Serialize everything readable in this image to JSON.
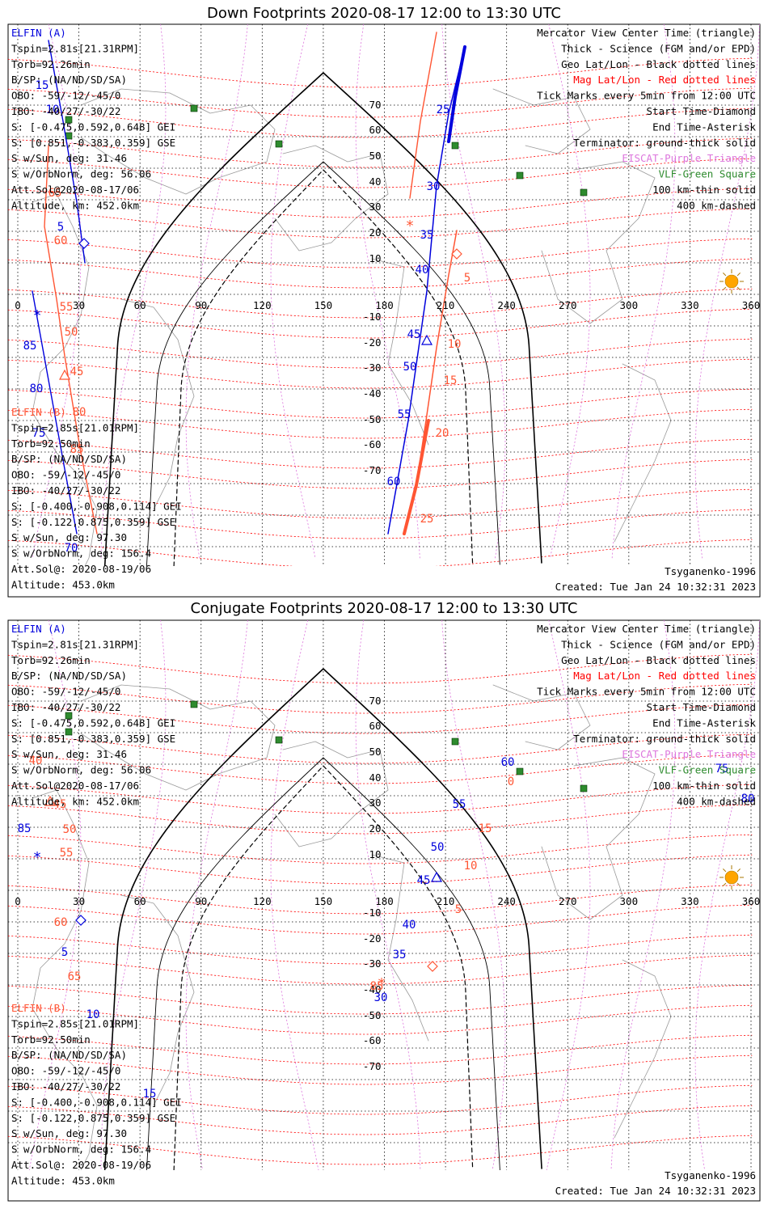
{
  "colors": {
    "blue": "#0000dd",
    "orange": "#ff5533",
    "red": "#ff0000",
    "violet": "#dd77dd",
    "green": "#2e8b2e",
    "sun": "#ffa500",
    "coast": "#999999"
  },
  "panels": [
    {
      "title": "Down Footprints 2020-08-17 12:00 to 13:30 UTC",
      "elfin_a": [
        "ELFIN (A)",
        "Tspin=2.81s[21.31RPM]",
        "Torb=92.26min",
        "B/SP: (NA/ND/SD/SA)",
        "OBO: -59/-12/-45/0",
        "IBO: -40/27/-30/22",
        "S: [-0.475,0.592,0.648] GEI",
        "S: [0.851,-0.383,0.359] GSE",
        "S w/Sun, deg: 31.46",
        "S w/OrbNorm, deg: 56.06",
        "Att.Sol@2020-08-17/06",
        "Altitude, km: 452.0km"
      ],
      "elfin_b": [
        "ELFIN (B)",
        "Tspin=2.85s[21.01RPM]",
        "Torb=92.50min",
        "B/SP: (NA/ND/SD/SA)",
        "OBO: -59/-12/-45/0",
        "IBO: -40/27/-30/22",
        "S: [-0.400,-0.908,0.114] GEI",
        "S: [-0.122,0.875,0.359] GSE",
        "S w/Sun, deg: 97.30",
        "S w/OrbNorm, deg: 156.4",
        "Att.Sol@: 2020-08-19/06",
        "Altitude: 453.0km"
      ],
      "legend": [
        "Mercator View Center Time (triangle)",
        "Thick - Science (FGM and/or EPD)",
        "Geo Lat/Lon - Black dotted lines",
        "Mag Lat/Lon - Red dotted lines",
        "Tick Marks every 5min from 12:00 UTC",
        "Start Time-Diamond",
        "End Time-Asterisk",
        "Terminator: ground-thick solid",
        "EISCAT-Purple Triangle",
        "VLF-Green Square",
        "100 km-thin solid",
        "400 km-dashed"
      ],
      "model": "Tsyganenko-1996",
      "created": "Created: Tue Jan 24 10:32:31 2023",
      "lon_ticks": [
        "0",
        "30",
        "60",
        "90",
        "120",
        "150",
        "180",
        "210",
        "240",
        "270",
        "300",
        "330",
        "360"
      ],
      "lat_ticks": [
        "70",
        "60",
        "50",
        "40",
        "30",
        "20",
        "10",
        "-10",
        "-20",
        "-30",
        "-40",
        "-50",
        "-60",
        "-70"
      ],
      "track_labels": [
        {
          "text": "15",
          "color": "blue"
        },
        {
          "text": "10",
          "color": "blue"
        },
        {
          "text": "5",
          "color": "blue"
        },
        {
          "text": "85",
          "color": "blue"
        },
        {
          "text": "80",
          "color": "blue"
        },
        {
          "text": "75",
          "color": "blue"
        },
        {
          "text": "70",
          "color": "blue"
        },
        {
          "text": "65",
          "color": "orange"
        },
        {
          "text": "60",
          "color": "orange"
        },
        {
          "text": "55",
          "color": "orange"
        },
        {
          "text": "50",
          "color": "orange"
        },
        {
          "text": "45",
          "color": "orange"
        },
        {
          "text": "80",
          "color": "orange"
        },
        {
          "text": "85",
          "color": "orange"
        },
        {
          "text": "25",
          "color": "blue"
        },
        {
          "text": "30",
          "color": "blue"
        },
        {
          "text": "35",
          "color": "blue"
        },
        {
          "text": "40",
          "color": "blue"
        },
        {
          "text": "45",
          "color": "blue"
        },
        {
          "text": "50",
          "color": "blue"
        },
        {
          "text": "55",
          "color": "blue"
        },
        {
          "text": "60",
          "color": "blue"
        },
        {
          "text": "5",
          "color": "orange"
        },
        {
          "text": "10",
          "color": "orange"
        },
        {
          "text": "15",
          "color": "orange"
        },
        {
          "text": "20",
          "color": "orange"
        },
        {
          "text": "25",
          "color": "orange"
        }
      ]
    },
    {
      "title": "Conjugate Footprints 2020-08-17 12:00 to 13:30 UTC",
      "elfin_a": [
        "ELFIN (A)",
        "Tspin=2.81s[21.31RPM]",
        "Torb=92.26min",
        "B/SP: (NA/ND/SD/SA)",
        "OBO: -59/-12/-45/0",
        "IBO: -40/27/-30/22",
        "S: [-0.475,0.592,0.648] GEI",
        "S: [0.851,-0.383,0.359] GSE",
        "S w/Sun, deg: 31.46",
        "S w/OrbNorm, deg: 56.06",
        "Att.Sol@2020-08-17/06",
        "Altitude, km: 452.0km"
      ],
      "elfin_b": [
        "ELFIN (B)",
        "Tspin=2.85s[21.01RPM]",
        "Torb=92.50min",
        "B/SP: (NA/ND/SD/SA)",
        "OBO: -59/-12/-45/0",
        "IBO: -40/27/-30/22",
        "S: [-0.400,-0.908,0.114] GEI",
        "S: [-0.122,0.875,0.359] GSE",
        "S w/Sun, deg: 97.30",
        "S w/OrbNorm, deg: 156.4",
        "Att.Sol@: 2020-08-19/06",
        "Altitude: 453.0km"
      ],
      "legend": [
        "Mercator View Center Time (triangle)",
        "Thick - Science (FGM and/or EPD)",
        "Geo Lat/Lon - Black dotted lines",
        "Mag Lat/Lon - Red dotted lines",
        "Tick Marks every 5min from 12:00 UTC",
        "Start Time-Diamond",
        "End Time-Asterisk",
        "Terminator: ground-thick solid",
        "EISCAT-Purple Triangle",
        "VLF-Green Square",
        "100 km-thin solid",
        "400 km-dashed"
      ],
      "model": "Tsyganenko-1996",
      "created": "Created: Tue Jan 24 10:32:31 2023",
      "lon_ticks": [
        "0",
        "30",
        "60",
        "90",
        "120",
        "150",
        "180",
        "210",
        "240",
        "270",
        "300",
        "330",
        "360"
      ],
      "lat_ticks": [
        "70",
        "60",
        "50",
        "40",
        "30",
        "20",
        "10",
        "-10",
        "-20",
        "-30",
        "-40",
        "-50",
        "-60",
        "-70"
      ],
      "track_labels": [
        {
          "text": "40",
          "color": "orange"
        },
        {
          "text": "45",
          "color": "orange"
        },
        {
          "text": "85",
          "color": "blue"
        },
        {
          "text": "50",
          "color": "orange"
        },
        {
          "text": "55",
          "color": "orange"
        },
        {
          "text": "60",
          "color": "orange"
        },
        {
          "text": "65",
          "color": "orange"
        },
        {
          "text": "5",
          "color": "blue"
        },
        {
          "text": "10",
          "color": "blue"
        },
        {
          "text": "15",
          "color": "blue"
        },
        {
          "text": "60",
          "color": "blue"
        },
        {
          "text": "55",
          "color": "blue"
        },
        {
          "text": "50",
          "color": "blue"
        },
        {
          "text": "45",
          "color": "blue"
        },
        {
          "text": "40",
          "color": "blue"
        },
        {
          "text": "35",
          "color": "blue"
        },
        {
          "text": "30",
          "color": "blue"
        },
        {
          "text": "0",
          "color": "orange"
        },
        {
          "text": "15",
          "color": "orange"
        },
        {
          "text": "10",
          "color": "orange"
        },
        {
          "text": "5",
          "color": "orange"
        },
        {
          "text": "85",
          "color": "orange"
        },
        {
          "text": "75",
          "color": "blue"
        },
        {
          "text": "80",
          "color": "blue"
        }
      ]
    }
  ]
}
